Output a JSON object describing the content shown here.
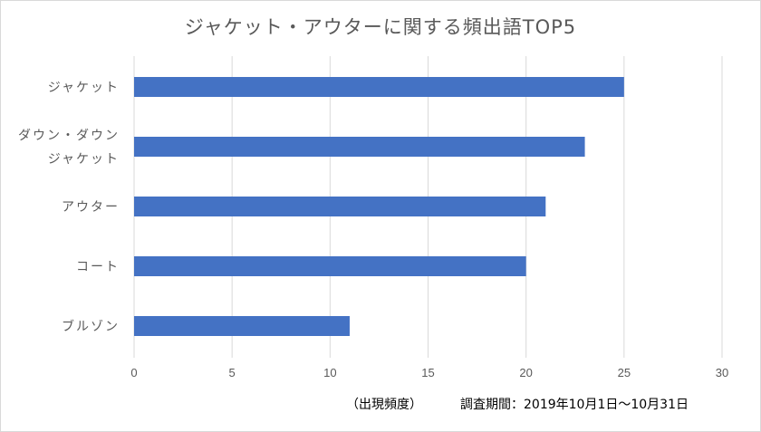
{
  "chart_data": {
    "type": "bar",
    "orientation": "horizontal",
    "title": "ジャケット・アウターに関する頻出語TOP5",
    "categories": [
      [
        "ジャケット"
      ],
      [
        "ダウン・ダウン",
        "ジャケット"
      ],
      [
        "アウター"
      ],
      [
        "コート"
      ],
      [
        "ブルゾン"
      ]
    ],
    "values": [
      25,
      23,
      21,
      20,
      11
    ],
    "xlim": [
      0,
      30
    ],
    "xticks": [
      "0",
      "5",
      "10",
      "15",
      "20",
      "25",
      "30"
    ],
    "grid": true,
    "bar_color": "#4472c4",
    "xlabel": "（出現頻度）",
    "note": "調査期間：2019年10月1日～10月31日"
  }
}
